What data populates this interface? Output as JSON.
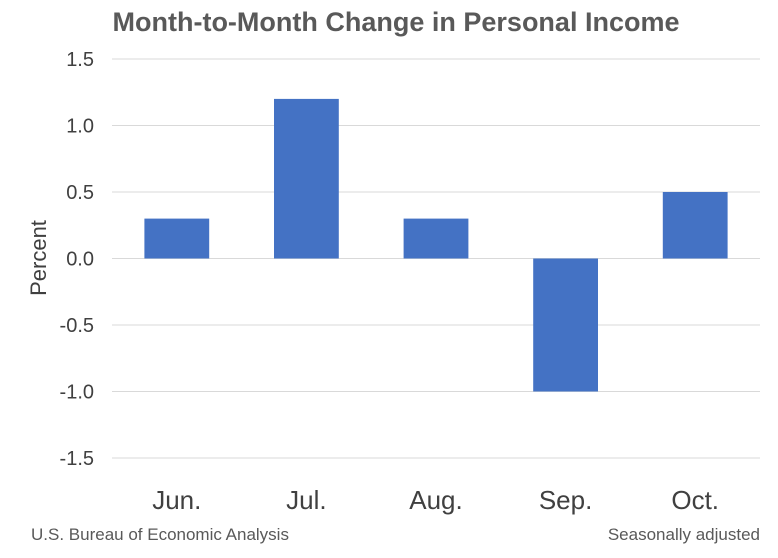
{
  "chart_data": {
    "type": "bar",
    "title": "Month-to-Month Change in Personal Income",
    "ylabel": "Percent",
    "xlabel": "",
    "categories": [
      "Jun.",
      "Jul.",
      "Aug.",
      "Sep.",
      "Oct."
    ],
    "values": [
      0.3,
      1.2,
      0.3,
      -1.0,
      0.5
    ],
    "ylim": [
      -1.5,
      1.5
    ],
    "yticks": [
      "1.5",
      "1.0",
      "0.5",
      "0.0",
      "-0.5",
      "-1.0",
      "-1.5"
    ],
    "grid": true,
    "legend": "none",
    "bar_color": "#4472c4"
  },
  "footer": {
    "source": "U.S. Bureau of Economic Analysis",
    "note": "Seasonally adjusted"
  }
}
